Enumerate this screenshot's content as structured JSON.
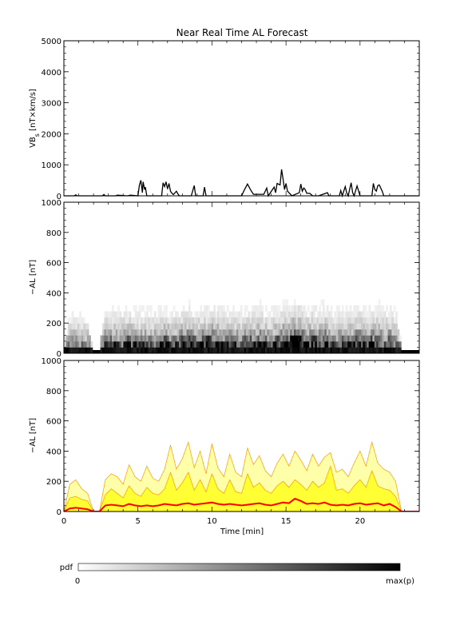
{
  "title": "Near Real Time AL Forecast",
  "colorbar": {
    "label": "pdf",
    "min_label": "0",
    "max_label": "max(p)"
  },
  "colors": {
    "mean_line": "#ff0000",
    "band_fill": "#ffff33",
    "band_edge": "#ff9900",
    "outer_fill": "#ffffaa"
  },
  "chart_data": [
    {
      "type": "line",
      "ylabel": "VB",
      "ylabel_subscript": "s",
      "ylabel_unit": " [nT×km/s]",
      "xlim": [
        0,
        24
      ],
      "ylim": [
        0,
        5000
      ],
      "yticks": [
        "0",
        "1000",
        "2000",
        "3000",
        "4000",
        "5000"
      ],
      "x": [
        0.0,
        0.7,
        0.8,
        0.9,
        2.6,
        2.7,
        2.8,
        3.5,
        3.6,
        4.3,
        4.5,
        5.0,
        5.1,
        5.2,
        5.3,
        5.35,
        5.45,
        5.5,
        5.6,
        6.6,
        6.7,
        6.8,
        6.9,
        7.0,
        7.1,
        7.2,
        7.3,
        7.4,
        7.6,
        7.7,
        7.8,
        8.6,
        8.8,
        8.9,
        9.4,
        9.5,
        9.6,
        10.9,
        12.0,
        12.2,
        12.4,
        12.6,
        12.8,
        13.5,
        13.7,
        13.8,
        14.2,
        14.3,
        14.4,
        14.6,
        14.7,
        14.8,
        14.9,
        15.0,
        15.1,
        15.4,
        15.9,
        16.0,
        16.1,
        16.2,
        16.3,
        16.4,
        16.6,
        16.8,
        17.2,
        17.8,
        17.9,
        18.6,
        18.7,
        18.8,
        19.0,
        19.1,
        19.2,
        19.4,
        19.5,
        19.6,
        19.8,
        20.0,
        20.1,
        20.2,
        20.8,
        20.9,
        21.0,
        21.1,
        21.2,
        21.3,
        21.5,
        21.6,
        21.8,
        24.0
      ],
      "values": [
        0,
        0,
        30,
        0,
        0,
        40,
        0,
        0,
        20,
        0,
        20,
        0,
        350,
        500,
        100,
        450,
        200,
        280,
        0,
        0,
        420,
        300,
        450,
        220,
        400,
        150,
        80,
        40,
        150,
        60,
        0,
        0,
        330,
        0,
        0,
        280,
        0,
        0,
        0,
        200,
        380,
        200,
        50,
        50,
        250,
        0,
        280,
        100,
        400,
        350,
        850,
        550,
        200,
        400,
        150,
        0,
        100,
        380,
        150,
        250,
        200,
        80,
        80,
        0,
        0,
        100,
        0,
        0,
        170,
        0,
        300,
        100,
        0,
        420,
        100,
        0,
        320,
        0,
        0,
        0,
        0,
        400,
        200,
        150,
        330,
        350,
        150,
        0,
        0,
        0
      ]
    },
    {
      "type": "heatmap",
      "ylabel": "−AL [nT]",
      "xlim": [
        0,
        24
      ],
      "ylim": [
        0,
        1000
      ],
      "yticks": [
        "0",
        "200",
        "400",
        "600",
        "800",
        "1000"
      ]
    },
    {
      "type": "area",
      "ylabel": "−AL [nT]",
      "xlabel": "Time [min]",
      "xlim": [
        0,
        24
      ],
      "ylim": [
        0,
        1000
      ],
      "xticks": [
        "0",
        "5",
        "10",
        "15",
        "20"
      ],
      "yticks": [
        "0",
        "200",
        "400",
        "600",
        "800",
        "1000"
      ],
      "x": [
        0.0,
        0.4,
        0.8,
        1.2,
        1.6,
        2.0,
        2.4,
        2.8,
        3.2,
        3.6,
        4.0,
        4.4,
        4.8,
        5.2,
        5.6,
        6.0,
        6.4,
        6.8,
        7.2,
        7.6,
        8.0,
        8.4,
        8.8,
        9.2,
        9.6,
        10.0,
        10.4,
        10.8,
        11.2,
        11.6,
        12.0,
        12.4,
        12.8,
        13.2,
        13.6,
        14.0,
        14.4,
        14.8,
        15.2,
        15.6,
        16.0,
        16.4,
        16.8,
        17.2,
        17.6,
        18.0,
        18.4,
        18.8,
        19.2,
        19.6,
        20.0,
        20.4,
        20.8,
        21.2,
        21.6,
        22.0,
        22.4,
        22.8,
        23.2,
        23.6,
        24.0
      ],
      "mean": [
        0,
        20,
        25,
        20,
        15,
        0,
        0,
        40,
        45,
        40,
        35,
        50,
        40,
        35,
        40,
        35,
        40,
        50,
        45,
        40,
        50,
        55,
        45,
        50,
        55,
        60,
        50,
        45,
        50,
        45,
        40,
        45,
        50,
        55,
        45,
        40,
        50,
        60,
        55,
        85,
        70,
        50,
        55,
        50,
        60,
        45,
        40,
        45,
        40,
        50,
        55,
        45,
        50,
        55,
        40,
        50,
        30,
        0,
        0,
        0,
        0
      ],
      "upper": [
        0,
        90,
        100,
        80,
        70,
        0,
        0,
        110,
        150,
        120,
        90,
        170,
        120,
        100,
        160,
        120,
        110,
        150,
        260,
        140,
        190,
        260,
        140,
        210,
        130,
        250,
        150,
        120,
        210,
        130,
        120,
        250,
        160,
        190,
        140,
        120,
        170,
        200,
        160,
        210,
        180,
        140,
        200,
        160,
        190,
        300,
        140,
        150,
        120,
        170,
        210,
        160,
        270,
        170,
        150,
        140,
        100,
        0,
        0,
        0,
        0
      ],
      "max": [
        0,
        180,
        210,
        150,
        120,
        0,
        0,
        210,
        250,
        230,
        180,
        310,
        230,
        200,
        300,
        220,
        200,
        280,
        440,
        280,
        350,
        460,
        290,
        400,
        250,
        450,
        290,
        230,
        380,
        260,
        230,
        420,
        310,
        370,
        270,
        230,
        320,
        380,
        300,
        400,
        340,
        270,
        380,
        300,
        360,
        390,
        260,
        280,
        230,
        320,
        400,
        300,
        460,
        320,
        280,
        260,
        200,
        0,
        0,
        0,
        0
      ]
    }
  ]
}
